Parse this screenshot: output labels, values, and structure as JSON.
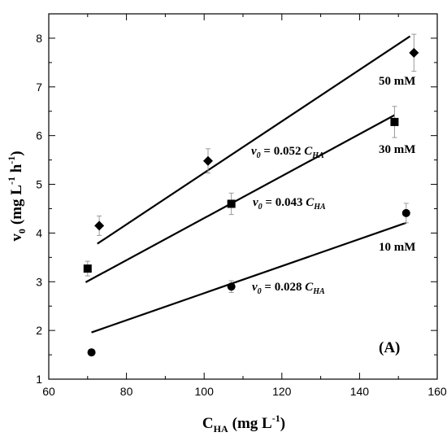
{
  "chart_data": {
    "type": "scatter",
    "panel_label": "(A)",
    "xlabel": {
      "main": "C",
      "sub": "HA",
      "unit": "(mg L",
      "sup": "-1",
      "close": ")"
    },
    "ylabel": {
      "main": "v",
      "sub": "0",
      "unit_open": "(mg L",
      "sup1": "-1",
      "mid": " h",
      "sup2": "-1",
      "close": ")"
    },
    "xlim": [
      60,
      160
    ],
    "ylim": [
      1,
      8.5
    ],
    "xticks": [
      60,
      80,
      100,
      120,
      140,
      160
    ],
    "yticks": [
      1,
      2,
      3,
      4,
      5,
      6,
      7,
      8
    ],
    "grid": false,
    "series": [
      {
        "name": "50 mM",
        "marker": "diamond",
        "points": [
          {
            "x": 73,
            "y": 4.15,
            "err": 0.2
          },
          {
            "x": 101,
            "y": 5.48,
            "err": 0.25
          },
          {
            "x": 154,
            "y": 7.7,
            "err": 0.38
          }
        ],
        "fit": {
          "x": [
            72.5,
            153
          ],
          "y": [
            3.78,
            8.04
          ]
        },
        "equation": {
          "lhs": "v",
          "lhs_sub": "0",
          "mid": " = 0.052 ",
          "rhs": "C",
          "rhs_sub": "HA"
        }
      },
      {
        "name": "30 mM",
        "marker": "square",
        "points": [
          {
            "x": 70,
            "y": 3.27,
            "err": 0.15
          },
          {
            "x": 107,
            "y": 4.6,
            "err": 0.22
          },
          {
            "x": 149,
            "y": 6.28,
            "err": 0.32
          }
        ],
        "fit": {
          "x": [
            69.5,
            149
          ],
          "y": [
            2.99,
            6.42
          ]
        },
        "equation": {
          "lhs": "v",
          "lhs_sub": "0",
          "mid": " = 0.043 ",
          "rhs": "C",
          "rhs_sub": "HA"
        }
      },
      {
        "name": "10 mM",
        "marker": "circle",
        "points": [
          {
            "x": 71,
            "y": 1.55,
            "err": 0
          },
          {
            "x": 107,
            "y": 2.9,
            "err": 0.12
          },
          {
            "x": 152,
            "y": 4.41,
            "err": 0.2
          }
        ],
        "fit": {
          "x": [
            71,
            152
          ],
          "y": [
            1.96,
            4.21
          ]
        },
        "equation": {
          "lhs": "v",
          "lhs_sub": "0",
          "mid": " = 0.028 ",
          "rhs": "C",
          "rhs_sub": "HA"
        }
      }
    ]
  }
}
